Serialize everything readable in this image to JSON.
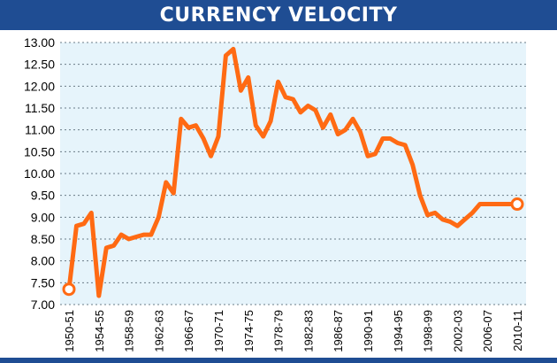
{
  "title": "CURRENCY VELOCITY",
  "colors": {
    "title_bg": "#1f4d93",
    "line": "#ff6a13",
    "plot_bg": "#e6f4fb",
    "grid": "#6b7c88",
    "text": "#000000"
  },
  "chart_data": {
    "type": "line",
    "title": "CURRENCY VELOCITY",
    "xlabel": "",
    "ylabel": "",
    "ylim": [
      7.0,
      13.0
    ],
    "yticks": [
      "7.00",
      "7.50",
      "8.00",
      "8.50",
      "9.00",
      "9.50",
      "10.00",
      "10.50",
      "11.00",
      "11.50",
      "12.00",
      "12.50",
      "13.00"
    ],
    "xtick_labels": [
      "1950-51",
      "1954-55",
      "1958-59",
      "1962-63",
      "1966-67",
      "1970-71",
      "1974-75",
      "1978-79",
      "1982-83",
      "1986-87",
      "1990-91",
      "1994-95",
      "1998-99",
      "2002-03",
      "2006-07",
      "2010-11"
    ],
    "grid": true,
    "series": [
      {
        "x": [
          "1950-51",
          "1951-52",
          "1952-53",
          "1953-54",
          "1954-55",
          "1955-56",
          "1956-57",
          "1957-58",
          "1958-59",
          "1959-60",
          "1960-61",
          "1961-62",
          "1962-63",
          "1963-64",
          "1964-65",
          "1965-66",
          "1966-67",
          "1967-68",
          "1968-69",
          "1969-70",
          "1970-71",
          "1971-72",
          "1972-73",
          "1973-74",
          "1974-75",
          "1975-76",
          "1976-77",
          "1977-78",
          "1978-79",
          "1979-80",
          "1980-81",
          "1981-82",
          "1982-83",
          "1983-84",
          "1984-85",
          "1985-86",
          "1986-87",
          "1987-88",
          "1988-89",
          "1989-90",
          "1990-91",
          "1991-92",
          "1992-93",
          "1993-94",
          "1994-95",
          "1995-96",
          "1996-97",
          "1997-98",
          "1998-99",
          "1999-00",
          "2000-01",
          "2001-02",
          "2002-03",
          "2003-04",
          "2004-05",
          "2005-06",
          "2006-07",
          "2007-08",
          "2008-09",
          "2009-10",
          "2010-11"
        ],
        "values": [
          7.35,
          8.8,
          8.85,
          9.1,
          7.2,
          8.3,
          8.35,
          8.6,
          8.5,
          8.55,
          8.6,
          8.6,
          9.0,
          9.8,
          9.55,
          11.25,
          11.05,
          11.1,
          10.8,
          10.4,
          10.85,
          12.7,
          12.85,
          11.9,
          12.2,
          11.1,
          10.85,
          11.2,
          12.1,
          11.75,
          11.7,
          11.4,
          11.55,
          11.45,
          11.05,
          11.35,
          10.9,
          11.0,
          11.25,
          10.95,
          10.4,
          10.45,
          10.8,
          10.8,
          10.7,
          10.65,
          10.2,
          9.5,
          9.05,
          9.1,
          8.95,
          8.9,
          8.8,
          8.95,
          9.1,
          9.3,
          9.3,
          9.3,
          9.3,
          9.3,
          9.3
        ]
      }
    ]
  }
}
